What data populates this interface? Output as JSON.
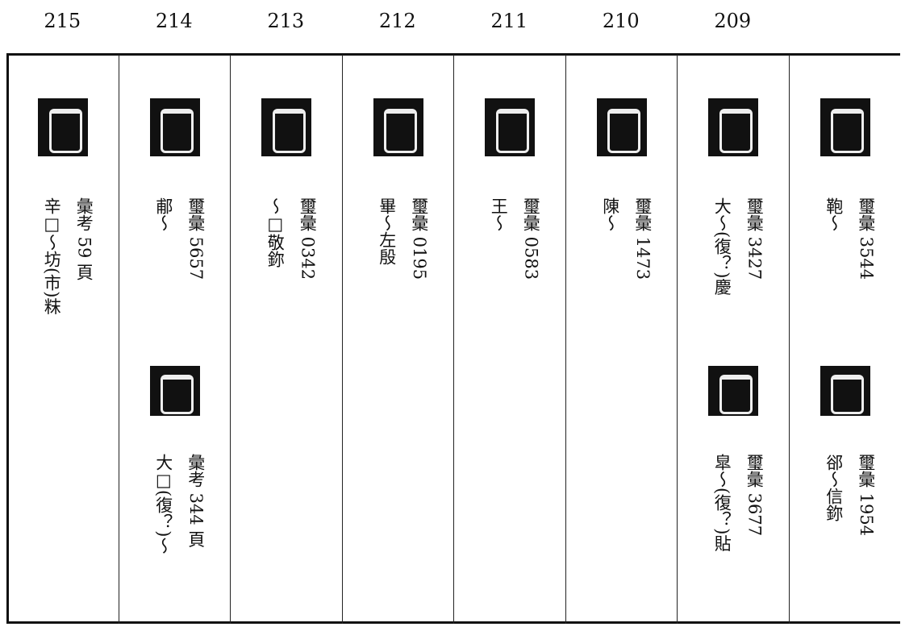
{
  "columns": [
    {
      "number": "215",
      "entries": [
        {
          "source": "彙考 59 頁",
          "reading": "辛□～坊(市)粖"
        }
      ]
    },
    {
      "number": "214",
      "entries": [
        {
          "source": "璽彙 5657",
          "reading": "郙～"
        },
        {
          "source": "彙考 344 頁",
          "reading": "大□(復？)～"
        }
      ]
    },
    {
      "number": "213",
      "entries": [
        {
          "source": "璽彙 0342",
          "reading": "～□敬鉨"
        }
      ]
    },
    {
      "number": "212",
      "entries": [
        {
          "source": "璽彙 0195",
          "reading": "畢～左殷"
        }
      ]
    },
    {
      "number": "211",
      "entries": [
        {
          "source": "璽彙 0583",
          "reading": "王～"
        }
      ]
    },
    {
      "number": "210",
      "entries": [
        {
          "source": "璽彙 1473",
          "reading": "陳～"
        }
      ]
    },
    {
      "number": "209",
      "entries": [
        {
          "source": "璽彙 3427",
          "reading": "大～(復？)慶"
        },
        {
          "source": "璽彙 3677",
          "reading": "皐～(復？)貼"
        }
      ]
    },
    {
      "entries": [
        {
          "source": "璽彙 3544",
          "reading": "鞄～"
        },
        {
          "source": "璽彙 1954",
          "reading": "郤～信鉨"
        }
      ]
    }
  ]
}
